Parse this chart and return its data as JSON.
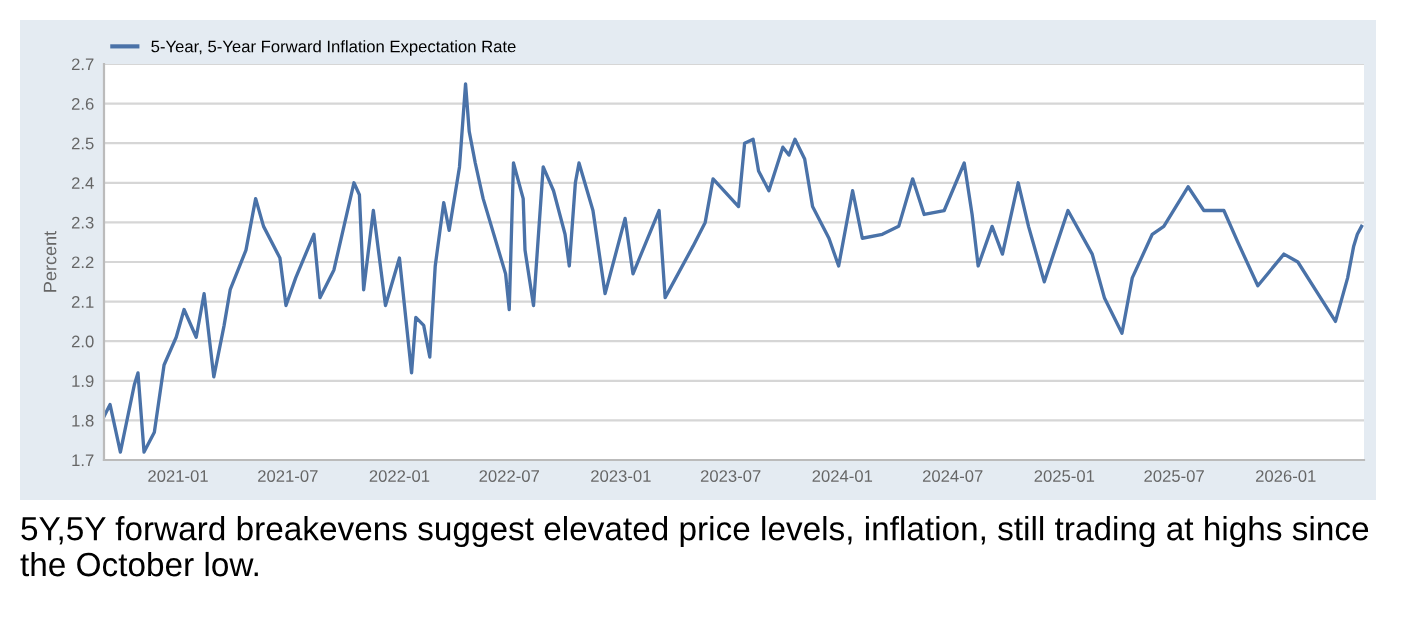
{
  "chart_data": {
    "type": "line",
    "ylabel": "Percent",
    "x": [
      "2020-09-01",
      "2020-09-11",
      "2020-09-28",
      "2020-10-21",
      "2020-10-27",
      "2020-11-06",
      "2020-11-23",
      "2020-12-09",
      "2020-12-29",
      "2021-01-11",
      "2021-01-31",
      "2021-02-13",
      "2021-03-01",
      "2021-03-18",
      "2021-03-28",
      "2021-04-23",
      "2021-05-09",
      "2021-05-22",
      "2021-06-18",
      "2021-06-28",
      "2021-07-14",
      "2021-08-13",
      "2021-08-23",
      "2021-09-15",
      "2021-10-18",
      "2021-10-27",
      "2021-11-03",
      "2021-11-19",
      "2021-12-09",
      "2022-01-01",
      "2022-01-21",
      "2022-01-28",
      "2022-02-10",
      "2022-02-20",
      "2022-03-01",
      "2022-03-15",
      "2022-03-24",
      "2022-04-10",
      "2022-04-20",
      "2022-04-26",
      "2022-05-06",
      "2022-05-19",
      "2022-06-25",
      "2022-07-01",
      "2022-07-08",
      "2022-07-24",
      "2022-07-27",
      "2022-08-10",
      "2022-08-26",
      "2022-09-12",
      "2022-10-01",
      "2022-10-08",
      "2022-10-18",
      "2022-10-24",
      "2022-11-16",
      "2022-12-06",
      "2023-01-08",
      "2023-01-21",
      "2023-03-05",
      "2023-03-15",
      "2023-04-30",
      "2023-05-20",
      "2023-06-02",
      "2023-07-14",
      "2023-07-24",
      "2023-08-07",
      "2023-08-16",
      "2023-09-02",
      "2023-09-25",
      "2023-10-05",
      "2023-10-15",
      "2023-10-31",
      "2023-11-13",
      "2023-12-10",
      "2023-12-26",
      "2024-01-18",
      "2024-02-03",
      "2024-03-07",
      "2024-04-03",
      "2024-04-26",
      "2024-05-15",
      "2024-06-17",
      "2024-07-20",
      "2024-08-02",
      "2024-08-12",
      "2024-09-04",
      "2024-09-21",
      "2024-10-17",
      "2024-11-03",
      "2024-11-29",
      "2025-01-07",
      "2025-02-16",
      "2025-03-08",
      "2025-04-06",
      "2025-04-23",
      "2025-05-26",
      "2025-06-14",
      "2025-07-24",
      "2025-08-19",
      "2025-09-21",
      "2025-10-14",
      "2025-11-16",
      "2025-12-29",
      "2026-01-21",
      "2026-02-23",
      "2026-03-24",
      "2026-04-13",
      "2026-04-23",
      "2026-04-29",
      "2026-05-06"
    ],
    "series": [
      {
        "name": "5-Year, 5-Year Forward Inflation Expectation Rate",
        "color": "#4a72a8",
        "values": [
          1.81,
          1.84,
          1.72,
          1.89,
          1.92,
          1.72,
          1.77,
          1.94,
          2.01,
          2.08,
          2.01,
          2.12,
          1.91,
          2.04,
          2.13,
          2.23,
          2.36,
          2.29,
          2.21,
          2.09,
          2.16,
          2.27,
          2.11,
          2.18,
          2.4,
          2.37,
          2.13,
          2.33,
          2.09,
          2.21,
          1.92,
          2.06,
          2.04,
          1.96,
          2.19,
          2.35,
          2.28,
          2.44,
          2.65,
          2.53,
          2.45,
          2.36,
          2.17,
          2.08,
          2.45,
          2.36,
          2.23,
          2.09,
          2.44,
          2.38,
          2.27,
          2.19,
          2.4,
          2.45,
          2.33,
          2.12,
          2.31,
          2.17,
          2.33,
          2.11,
          2.24,
          2.3,
          2.41,
          2.34,
          2.5,
          2.51,
          2.43,
          2.38,
          2.49,
          2.47,
          2.51,
          2.46,
          2.34,
          2.26,
          2.19,
          2.38,
          2.26,
          2.27,
          2.29,
          2.41,
          2.32,
          2.33,
          2.45,
          2.32,
          2.19,
          2.29,
          2.22,
          2.4,
          2.29,
          2.15,
          2.33,
          2.22,
          2.11,
          2.02,
          2.16,
          2.27,
          2.29,
          2.39,
          2.33,
          2.33,
          2.25,
          2.14,
          2.22,
          2.2,
          2.12,
          2.05,
          2.16,
          2.24,
          2.27,
          2.29
        ]
      }
    ],
    "xlim": [
      "2020-09-01",
      "2026-05-10"
    ],
    "xticks": [
      {
        "value": "2021-01-01",
        "label": "2021-01"
      },
      {
        "value": "2021-07-01",
        "label": "2021-07"
      },
      {
        "value": "2022-01-01",
        "label": "2022-01"
      },
      {
        "value": "2022-07-01",
        "label": "2022-07"
      },
      {
        "value": "2023-01-01",
        "label": "2023-01"
      },
      {
        "value": "2023-07-01",
        "label": "2023-07"
      },
      {
        "value": "2024-01-01",
        "label": "2024-01"
      },
      {
        "value": "2024-07-01",
        "label": "2024-07"
      },
      {
        "value": "2025-01-01",
        "label": "2025-01"
      },
      {
        "value": "2025-07-01",
        "label": "2025-07"
      },
      {
        "value": "2026-01-01",
        "label": "2026-01"
      }
    ],
    "ylim": [
      1.7,
      2.7
    ],
    "yticks": [
      1.7,
      1.8,
      1.9,
      {
        "value": 2,
        "label": "2.0"
      },
      2.1,
      2.2,
      2.3,
      2.4,
      2.5,
      2.6,
      2.7
    ],
    "grid": "y",
    "legend": "top left",
    "marker": "none",
    "line_style": "solid",
    "annotations": [
      "5Y,5Y forward breakevens suggest elevated price levels, inflation, still trading at highs since the October low."
    ]
  }
}
